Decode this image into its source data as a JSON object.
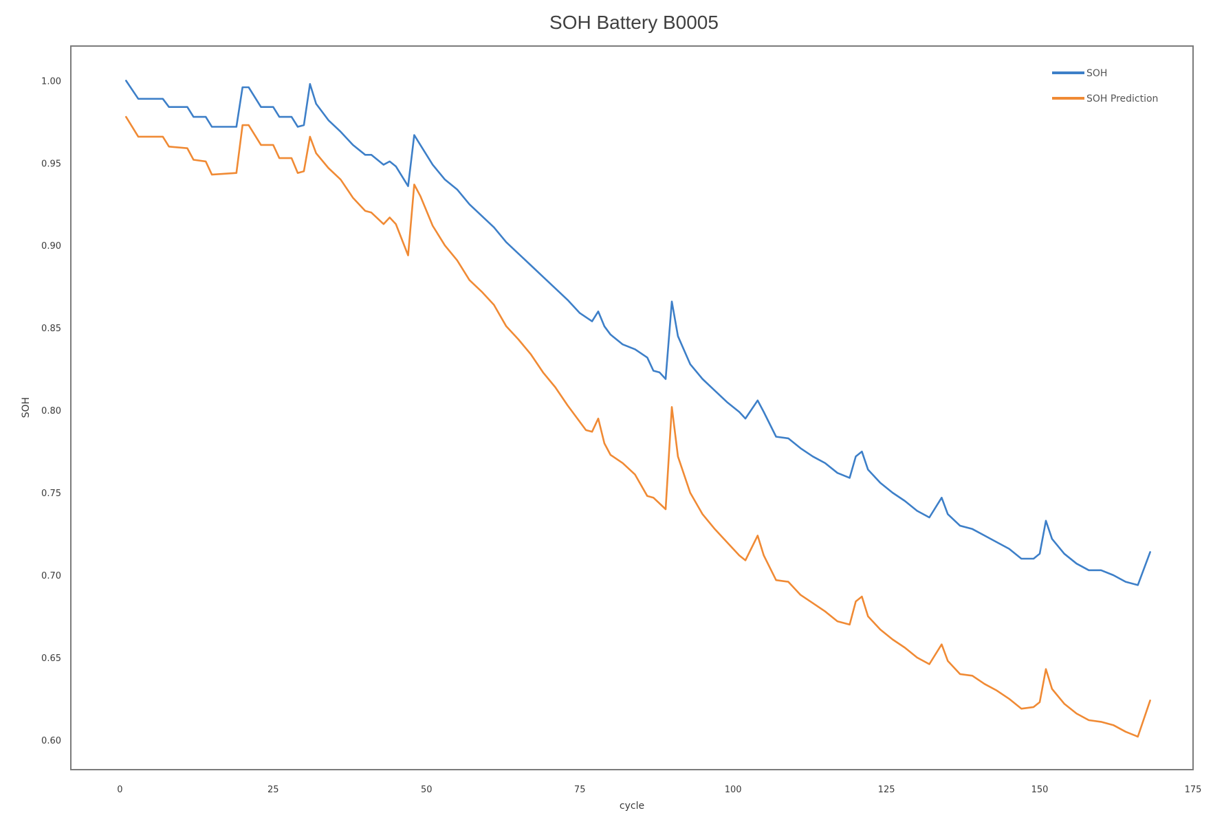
{
  "chart_data": {
    "type": "line",
    "title": "SOH Battery B0005",
    "xlabel": "cycle",
    "ylabel": "SOH",
    "xlim": [
      -8,
      175
    ],
    "ylim": [
      0.582,
      1.021
    ],
    "xticks": [
      0,
      25,
      50,
      75,
      100,
      125,
      150,
      175
    ],
    "xtick_labels": [
      "0",
      "25",
      "50",
      "75",
      "100",
      "125",
      "150",
      "175"
    ],
    "yticks": [
      0.6,
      0.65,
      0.7,
      0.75,
      0.8,
      0.85,
      0.9,
      0.95,
      1.0
    ],
    "ytick_labels": [
      "0.60",
      "0.65",
      "0.70",
      "0.75",
      "0.80",
      "0.85",
      "0.90",
      "0.95",
      "1.00"
    ],
    "grid": false,
    "legend_position": "top-right",
    "series": [
      {
        "name": "SOH",
        "color": "#3d7fc8",
        "points": [
          [
            1,
            1.0
          ],
          [
            3,
            0.989
          ],
          [
            7,
            0.989
          ],
          [
            8,
            0.984
          ],
          [
            11,
            0.984
          ],
          [
            12,
            0.978
          ],
          [
            14,
            0.978
          ],
          [
            15,
            0.972
          ],
          [
            19,
            0.972
          ],
          [
            20,
            0.996
          ],
          [
            21,
            0.996
          ],
          [
            23,
            0.984
          ],
          [
            25,
            0.984
          ],
          [
            26,
            0.978
          ],
          [
            28,
            0.978
          ],
          [
            29,
            0.972
          ],
          [
            30,
            0.973
          ],
          [
            31,
            0.998
          ],
          [
            32,
            0.986
          ],
          [
            34,
            0.976
          ],
          [
            36,
            0.969
          ],
          [
            38,
            0.961
          ],
          [
            40,
            0.955
          ],
          [
            41,
            0.955
          ],
          [
            43,
            0.949
          ],
          [
            44,
            0.951
          ],
          [
            45,
            0.948
          ],
          [
            47,
            0.936
          ],
          [
            48,
            0.967
          ],
          [
            49,
            0.961
          ],
          [
            51,
            0.949
          ],
          [
            53,
            0.94
          ],
          [
            55,
            0.934
          ],
          [
            57,
            0.925
          ],
          [
            59,
            0.918
          ],
          [
            61,
            0.911
          ],
          [
            63,
            0.902
          ],
          [
            65,
            0.895
          ],
          [
            67,
            0.888
          ],
          [
            69,
            0.881
          ],
          [
            71,
            0.874
          ],
          [
            73,
            0.867
          ],
          [
            75,
            0.859
          ],
          [
            77,
            0.854
          ],
          [
            78,
            0.86
          ],
          [
            79,
            0.851
          ],
          [
            80,
            0.846
          ],
          [
            82,
            0.84
          ],
          [
            84,
            0.837
          ],
          [
            86,
            0.832
          ],
          [
            87,
            0.824
          ],
          [
            88,
            0.823
          ],
          [
            89,
            0.819
          ],
          [
            90,
            0.866
          ],
          [
            91,
            0.845
          ],
          [
            93,
            0.828
          ],
          [
            95,
            0.819
          ],
          [
            97,
            0.812
          ],
          [
            99,
            0.805
          ],
          [
            101,
            0.799
          ],
          [
            102,
            0.795
          ],
          [
            104,
            0.806
          ],
          [
            105,
            0.799
          ],
          [
            107,
            0.784
          ],
          [
            109,
            0.783
          ],
          [
            111,
            0.777
          ],
          [
            113,
            0.772
          ],
          [
            115,
            0.768
          ],
          [
            117,
            0.762
          ],
          [
            119,
            0.759
          ],
          [
            120,
            0.772
          ],
          [
            121,
            0.775
          ],
          [
            122,
            0.764
          ],
          [
            124,
            0.756
          ],
          [
            126,
            0.75
          ],
          [
            128,
            0.745
          ],
          [
            130,
            0.739
          ],
          [
            132,
            0.735
          ],
          [
            134,
            0.747
          ],
          [
            135,
            0.737
          ],
          [
            137,
            0.73
          ],
          [
            139,
            0.728
          ],
          [
            141,
            0.724
          ],
          [
            143,
            0.72
          ],
          [
            145,
            0.716
          ],
          [
            147,
            0.71
          ],
          [
            149,
            0.71
          ],
          [
            150,
            0.713
          ],
          [
            151,
            0.733
          ],
          [
            152,
            0.722
          ],
          [
            154,
            0.713
          ],
          [
            156,
            0.707
          ],
          [
            158,
            0.703
          ],
          [
            160,
            0.703
          ],
          [
            162,
            0.7
          ],
          [
            164,
            0.696
          ],
          [
            166,
            0.694
          ],
          [
            168,
            0.714
          ]
        ]
      },
      {
        "name": "SOH Prediction",
        "color": "#f08a34",
        "points": [
          [
            1,
            0.978
          ],
          [
            3,
            0.966
          ],
          [
            7,
            0.966
          ],
          [
            8,
            0.96
          ],
          [
            11,
            0.959
          ],
          [
            12,
            0.952
          ],
          [
            14,
            0.951
          ],
          [
            15,
            0.943
          ],
          [
            19,
            0.944
          ],
          [
            20,
            0.973
          ],
          [
            21,
            0.973
          ],
          [
            23,
            0.961
          ],
          [
            25,
            0.961
          ],
          [
            26,
            0.953
          ],
          [
            28,
            0.953
          ],
          [
            29,
            0.944
          ],
          [
            30,
            0.945
          ],
          [
            31,
            0.966
          ],
          [
            32,
            0.956
          ],
          [
            34,
            0.947
          ],
          [
            36,
            0.94
          ],
          [
            38,
            0.929
          ],
          [
            40,
            0.921
          ],
          [
            41,
            0.92
          ],
          [
            43,
            0.913
          ],
          [
            44,
            0.917
          ],
          [
            45,
            0.913
          ],
          [
            47,
            0.894
          ],
          [
            48,
            0.937
          ],
          [
            49,
            0.93
          ],
          [
            51,
            0.912
          ],
          [
            53,
            0.9
          ],
          [
            55,
            0.891
          ],
          [
            57,
            0.879
          ],
          [
            59,
            0.872
          ],
          [
            61,
            0.864
          ],
          [
            63,
            0.851
          ],
          [
            65,
            0.843
          ],
          [
            67,
            0.834
          ],
          [
            69,
            0.823
          ],
          [
            71,
            0.814
          ],
          [
            73,
            0.803
          ],
          [
            75,
            0.793
          ],
          [
            76,
            0.788
          ],
          [
            77,
            0.787
          ],
          [
            78,
            0.795
          ],
          [
            79,
            0.78
          ],
          [
            80,
            0.773
          ],
          [
            82,
            0.768
          ],
          [
            84,
            0.761
          ],
          [
            86,
            0.748
          ],
          [
            87,
            0.747
          ],
          [
            89,
            0.74
          ],
          [
            90,
            0.802
          ],
          [
            91,
            0.772
          ],
          [
            93,
            0.75
          ],
          [
            95,
            0.737
          ],
          [
            97,
            0.728
          ],
          [
            99,
            0.72
          ],
          [
            101,
            0.712
          ],
          [
            102,
            0.709
          ],
          [
            104,
            0.724
          ],
          [
            105,
            0.712
          ],
          [
            107,
            0.697
          ],
          [
            109,
            0.696
          ],
          [
            111,
            0.688
          ],
          [
            113,
            0.683
          ],
          [
            115,
            0.678
          ],
          [
            117,
            0.672
          ],
          [
            119,
            0.67
          ],
          [
            120,
            0.684
          ],
          [
            121,
            0.687
          ],
          [
            122,
            0.675
          ],
          [
            124,
            0.667
          ],
          [
            126,
            0.661
          ],
          [
            128,
            0.656
          ],
          [
            130,
            0.65
          ],
          [
            132,
            0.646
          ],
          [
            134,
            0.658
          ],
          [
            135,
            0.648
          ],
          [
            137,
            0.64
          ],
          [
            139,
            0.639
          ],
          [
            141,
            0.634
          ],
          [
            143,
            0.63
          ],
          [
            145,
            0.625
          ],
          [
            147,
            0.619
          ],
          [
            149,
            0.62
          ],
          [
            150,
            0.623
          ],
          [
            151,
            0.643
          ],
          [
            152,
            0.631
          ],
          [
            154,
            0.622
          ],
          [
            156,
            0.616
          ],
          [
            158,
            0.612
          ],
          [
            160,
            0.611
          ],
          [
            162,
            0.609
          ],
          [
            164,
            0.605
          ],
          [
            166,
            0.602
          ],
          [
            168,
            0.624
          ]
        ]
      }
    ]
  }
}
